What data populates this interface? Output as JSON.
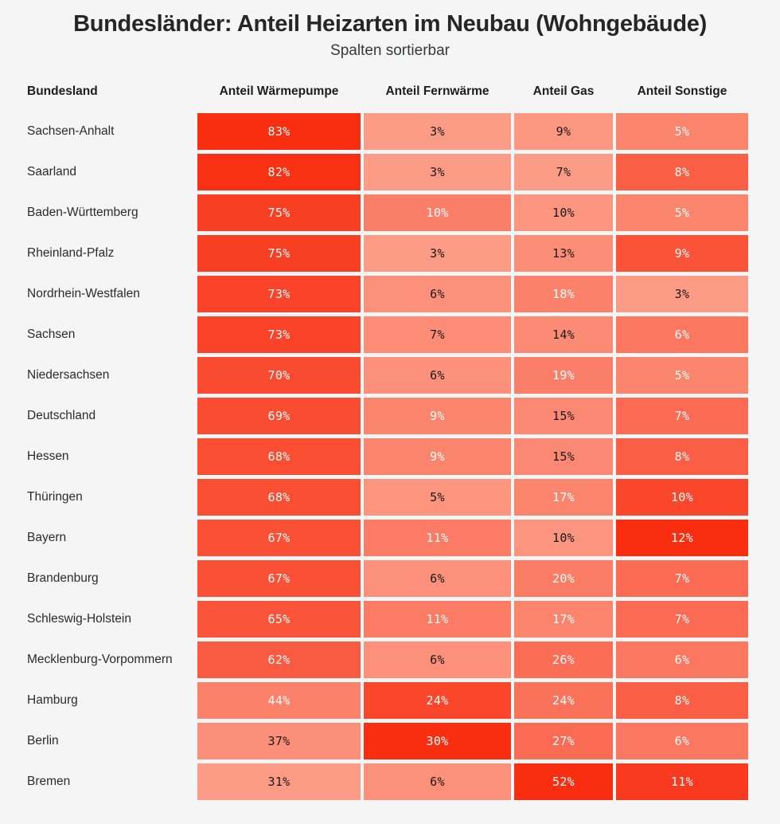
{
  "header": {
    "title": "Bundesländer: Anteil Heizarten im Neubau (Wohngebäude)",
    "subtitle": "Spalten sortierbar"
  },
  "colors": {
    "page_background": "#F5F5F5",
    "title_text": "#262626",
    "subtitle_text": "#333940",
    "header_text": "#1D1D1D",
    "row_label_text": "#2B2B2B"
  },
  "chart_data": {
    "type": "table",
    "subtype": "heatmap",
    "title": "Bundesländer: Anteil Heizarten im Neubau (Wohngebäude)",
    "subtitle": "Spalten sortierbar",
    "unit": "%",
    "columns": [
      {
        "key": "bundesland",
        "label": "Bundesland"
      },
      {
        "key": "waermepumpe",
        "label": "Anteil Wärmepumpe"
      },
      {
        "key": "fernwaerme",
        "label": "Anteil Fernwärme"
      },
      {
        "key": "gas",
        "label": "Anteil Gas"
      },
      {
        "key": "sonstige",
        "label": "Anteil Sonstige"
      }
    ],
    "rows": [
      {
        "name": "Sachsen-Anhalt",
        "values": [
          83,
          3,
          9,
          5
        ]
      },
      {
        "name": "Saarland",
        "values": [
          82,
          3,
          7,
          8
        ]
      },
      {
        "name": "Baden-Württemberg",
        "values": [
          75,
          10,
          10,
          5
        ]
      },
      {
        "name": "Rheinland-Pfalz",
        "values": [
          75,
          3,
          13,
          9
        ]
      },
      {
        "name": "Nordrhein-Westfalen",
        "values": [
          73,
          6,
          18,
          3
        ]
      },
      {
        "name": "Sachsen",
        "values": [
          73,
          7,
          14,
          6
        ]
      },
      {
        "name": "Niedersachsen",
        "values": [
          70,
          6,
          19,
          5
        ]
      },
      {
        "name": "Deutschland",
        "values": [
          69,
          9,
          15,
          7
        ]
      },
      {
        "name": "Hessen",
        "values": [
          68,
          9,
          15,
          8
        ]
      },
      {
        "name": "Thüringen",
        "values": [
          68,
          5,
          17,
          10
        ]
      },
      {
        "name": "Bayern",
        "values": [
          67,
          11,
          10,
          12
        ]
      },
      {
        "name": "Brandenburg",
        "values": [
          67,
          6,
          20,
          7
        ]
      },
      {
        "name": "Schleswig-Holstein",
        "values": [
          65,
          11,
          17,
          7
        ]
      },
      {
        "name": "Mecklenburg-Vorpommern",
        "values": [
          62,
          6,
          26,
          6
        ]
      },
      {
        "name": "Hamburg",
        "values": [
          44,
          24,
          24,
          8
        ]
      },
      {
        "name": "Berlin",
        "values": [
          37,
          30,
          27,
          6
        ]
      },
      {
        "name": "Bremen",
        "values": [
          31,
          6,
          52,
          11
        ]
      }
    ],
    "color_scale": {
      "normalization": "per-column min-max",
      "min_color": "#FC9C87",
      "max_color": "#F92E11",
      "light_text_threshold": 0.2,
      "text_on_dark": "#FFFFFF",
      "text_on_light": "#1A1A1A"
    },
    "layout_hints": {
      "grid": "off",
      "legend": "none",
      "value_alignment": "center"
    }
  }
}
